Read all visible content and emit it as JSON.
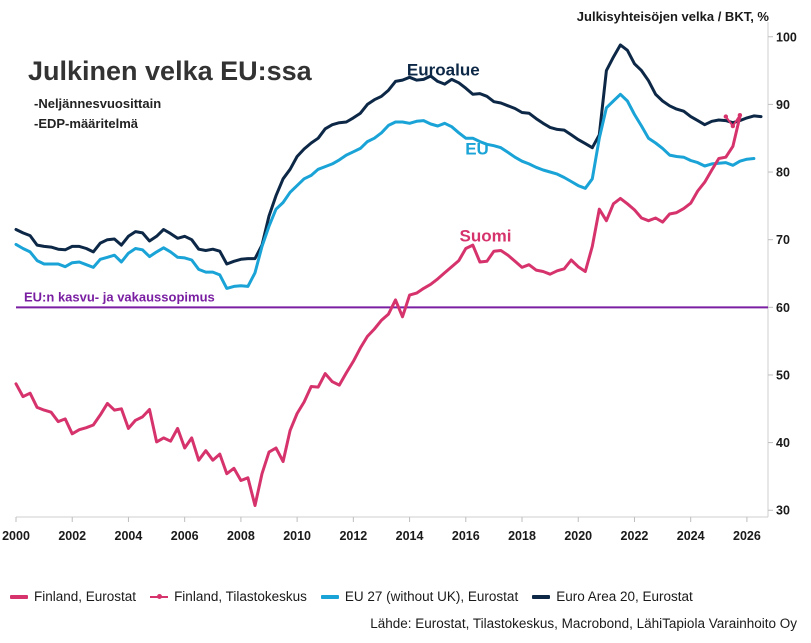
{
  "chart_data": {
    "type": "line",
    "title": "Julkinen velka EU:ssa",
    "subtitle_lines": [
      "-Neljännesvuosittain",
      "-EDP-määritelmä"
    ],
    "unit_label": "Julkisyhteisöjen velka / BKT, %",
    "x_ticks": [
      "2000",
      "2002",
      "2004",
      "2006",
      "2008",
      "2010",
      "2012",
      "2014",
      "2016",
      "2018",
      "2020",
      "2022",
      "2024",
      "2026"
    ],
    "y_ticks": [
      "30",
      "40",
      "50",
      "60",
      "70",
      "80",
      "90",
      "100"
    ],
    "xlim": [
      2000,
      2026.75
    ],
    "ylim": [
      29,
      101
    ],
    "grid": false,
    "legend_position": "bottom",
    "reference_line": {
      "value": 60,
      "label": "EU:n kasvu- ja vakaussopimus",
      "color": "#7a1fa2"
    },
    "series_labels": [
      {
        "text": "Euroalue",
        "x": 2015.2,
        "y": 94.3,
        "color": "#0d2847"
      },
      {
        "text": "EU",
        "x": 2016.4,
        "y": 82.6,
        "color": "#1aa3d6"
      },
      {
        "text": "Suomi",
        "x": 2016.7,
        "y": 69.7,
        "color": "#d6336c"
      }
    ],
    "series": [
      {
        "name": "Euro Area 20, Eurostat",
        "color": "#0d2847",
        "x_start": 2000,
        "step": 0.25,
        "values": [
          71.5,
          71.0,
          70.6,
          69.2,
          69.0,
          68.9,
          68.6,
          68.5,
          69.0,
          69.0,
          68.7,
          68.2,
          69.5,
          70.0,
          70.1,
          69.2,
          70.5,
          71.2,
          71.0,
          69.8,
          70.5,
          71.5,
          70.9,
          70.2,
          70.5,
          70.0,
          68.6,
          68.4,
          68.6,
          68.3,
          66.4,
          66.8,
          67.1,
          67.2,
          67.2,
          69.2,
          73.5,
          76.5,
          79.0,
          80.4,
          82.3,
          83.4,
          84.3,
          85.0,
          86.4,
          87.0,
          87.3,
          87.4,
          88.0,
          88.7,
          90.0,
          90.7,
          91.2,
          92.1,
          93.4,
          93.6,
          94.0,
          93.6,
          93.7,
          94.2,
          93.4,
          93.0,
          93.7,
          93.2,
          92.4,
          91.5,
          91.6,
          91.2,
          90.4,
          90.2,
          89.8,
          89.4,
          88.8,
          88.7,
          87.9,
          87.2,
          86.6,
          86.3,
          86.2,
          85.5,
          84.8,
          84.2,
          83.6,
          85.5,
          95.0,
          97.0,
          98.8,
          98.0,
          96.0,
          95.0,
          93.5,
          91.5,
          90.5,
          89.8,
          89.3,
          89.0,
          88.2,
          87.6,
          87.0,
          87.5,
          87.7,
          87.6,
          87.3,
          87.6,
          88.0,
          88.3,
          88.2
        ]
      },
      {
        "name": "EU 27 (without UK), Eurostat",
        "color": "#1aa3d6",
        "x_start": 2000,
        "step": 0.25,
        "values": [
          69.3,
          68.7,
          68.2,
          66.9,
          66.4,
          66.4,
          66.4,
          66.0,
          66.6,
          66.7,
          66.3,
          65.9,
          67.1,
          67.4,
          67.7,
          66.7,
          68.0,
          68.7,
          68.5,
          67.5,
          68.2,
          68.8,
          68.2,
          67.4,
          67.3,
          67.0,
          65.6,
          65.2,
          65.2,
          64.8,
          62.8,
          63.1,
          63.2,
          63.1,
          65.1,
          69.0,
          72.0,
          74.5,
          75.5,
          77.0,
          78.0,
          79.0,
          79.5,
          80.4,
          80.8,
          81.2,
          81.8,
          82.5,
          83.0,
          83.5,
          84.5,
          85.0,
          85.8,
          86.9,
          87.4,
          87.4,
          87.2,
          87.5,
          87.6,
          87.1,
          86.8,
          87.2,
          86.7,
          85.8,
          85.0,
          85.0,
          84.5,
          84.1,
          83.9,
          83.6,
          82.9,
          82.2,
          81.6,
          81.2,
          80.7,
          80.3,
          80.0,
          79.7,
          79.2,
          78.6,
          78.0,
          77.6,
          79.0,
          85.0,
          89.5,
          90.5,
          91.5,
          90.5,
          88.5,
          86.8,
          85.0,
          84.3,
          83.5,
          82.5,
          82.3,
          82.2,
          81.7,
          81.4,
          80.9,
          81.2,
          81.3,
          81.4,
          81.0,
          81.6,
          81.9,
          82.0
        ]
      },
      {
        "name": "Finland, Eurostat",
        "color": "#d6336c",
        "x_start": 2000,
        "step": 0.25,
        "values": [
          48.7,
          46.8,
          47.3,
          45.2,
          44.8,
          44.5,
          43.1,
          43.5,
          41.3,
          41.9,
          42.2,
          42.6,
          44.1,
          45.8,
          44.8,
          45.0,
          42.1,
          43.3,
          43.8,
          44.9,
          40.1,
          40.7,
          40.2,
          42.1,
          39.2,
          40.7,
          37.4,
          38.8,
          37.4,
          38.3,
          35.4,
          36.2,
          34.4,
          34.8,
          30.7,
          35.4,
          38.6,
          39.2,
          37.2,
          41.8,
          44.3,
          46.0,
          48.3,
          48.2,
          50.2,
          49.0,
          48.5,
          50.3,
          52.0,
          54.0,
          55.7,
          56.8,
          58.1,
          59.0,
          61.1,
          58.6,
          61.8,
          62.1,
          62.8,
          63.4,
          64.2,
          65.1,
          66.0,
          66.9,
          68.7,
          69.2,
          66.7,
          66.8,
          68.3,
          68.4,
          67.7,
          66.8,
          65.9,
          66.3,
          65.5,
          65.3,
          64.9,
          65.4,
          65.7,
          67.0,
          66.0,
          65.3,
          69.0,
          74.5,
          72.8,
          75.3,
          76.1,
          75.3,
          74.4,
          73.2,
          72.8,
          73.2,
          72.6,
          73.8,
          74.0,
          74.6,
          75.4,
          77.2,
          78.5,
          80.3,
          82.0,
          82.2,
          83.8,
          88.2
        ]
      },
      {
        "name": "Finland, Tilastokeskus",
        "color": "#d6336c",
        "x_start": 2025.25,
        "step": 0.25,
        "values": [
          88.2,
          86.8,
          88.4
        ]
      }
    ]
  },
  "legend": {
    "items": [
      {
        "label": "Finland, Eurostat",
        "color": "#d6336c"
      },
      {
        "label": "Finland, Tilastokeskus",
        "color": "#d6336c"
      },
      {
        "label": "EU 27 (without UK), Eurostat",
        "color": "#1aa3d6"
      },
      {
        "label": "Euro Area 20, Eurostat",
        "color": "#0d2847"
      }
    ]
  },
  "source": "Lähde: Eurostat, Tilastokeskus, Macrobond, LähiTapiola Varainhoito Oy"
}
